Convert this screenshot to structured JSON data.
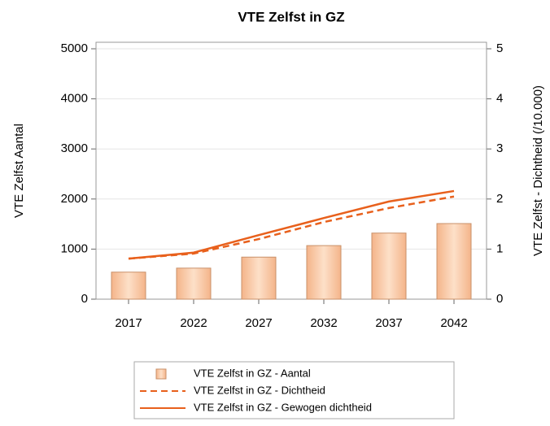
{
  "chart_data": {
    "type": "bar",
    "title": "VTE Zelfst in GZ",
    "ylabel": "VTE Zelfst Aantal",
    "y2label": "VTE Zelfst - Dichtheid (/10.000)",
    "categories": [
      "2017",
      "2022",
      "2027",
      "2032",
      "2037",
      "2042"
    ],
    "series": [
      {
        "name": "VTE Zelfst in GZ - Aantal",
        "type": "bar",
        "color": "#f9c29a",
        "values": [
          540,
          620,
          840,
          1070,
          1320,
          1510
        ]
      },
      {
        "name": "VTE Zelfst in GZ - Dichtheid",
        "type": "line",
        "dashed": true,
        "axis": "y2",
        "color": "#e8601c",
        "values": [
          0.81,
          0.91,
          1.2,
          1.54,
          1.82,
          2.05
        ]
      },
      {
        "name": "VTE Zelfst in GZ - Gewogen dichtheid",
        "type": "line",
        "dashed": false,
        "axis": "y2",
        "color": "#e8601c",
        "values": [
          0.81,
          0.93,
          1.28,
          1.62,
          1.95,
          2.16
        ]
      }
    ],
    "ylim": [
      0,
      5000
    ],
    "yticks": [
      0,
      1000,
      2000,
      3000,
      4000,
      5000
    ],
    "y2lim": [
      0,
      5
    ],
    "y2ticks": [
      0,
      1,
      2,
      3,
      4,
      5
    ],
    "grid": true,
    "legend": "bottom"
  }
}
